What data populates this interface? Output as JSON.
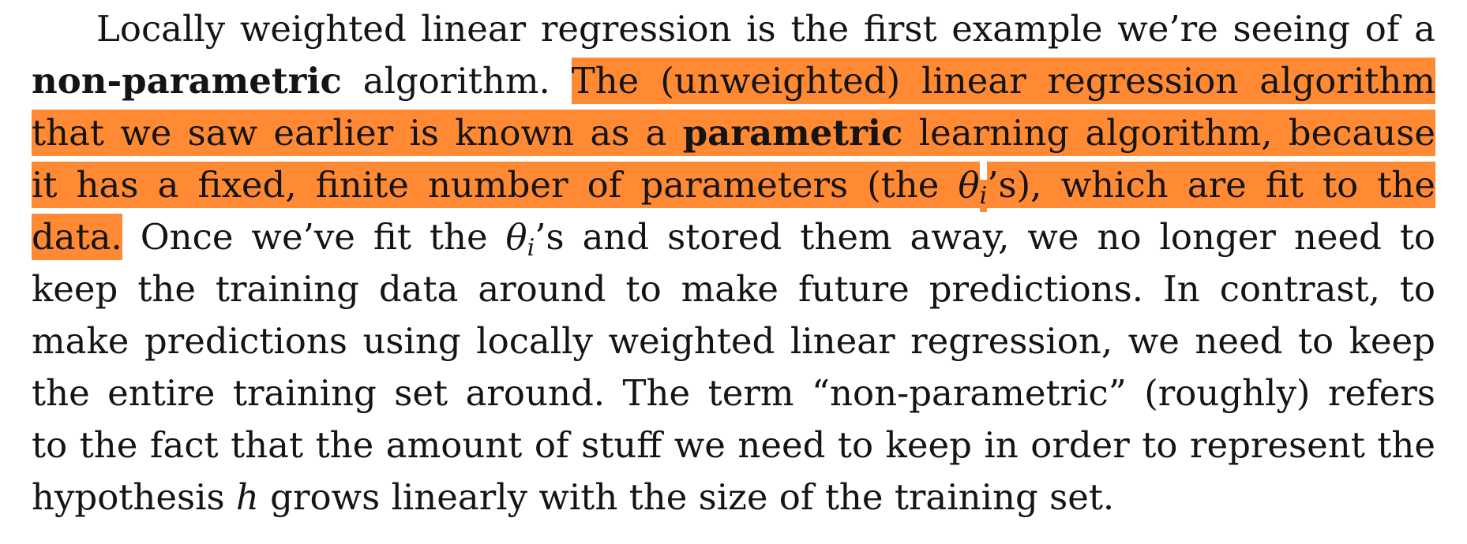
{
  "paragraph": {
    "lines": [
      {
        "segments": [
          {
            "text": "Locally weighted linear regression is the first example we’re seeing of a"
          }
        ]
      },
      {
        "segments": [
          {
            "text": "non-parametric",
            "bold": true
          },
          {
            "text": " algorithm. "
          },
          {
            "text": "The (unweighted) linear regression algorithm",
            "highlight": true
          }
        ]
      },
      {
        "segments": [
          {
            "text": "that we saw earlier is known as a ",
            "highlight": true
          },
          {
            "text": "parametric",
            "highlight": true,
            "bold": true
          },
          {
            "text": " learning algorithm, because",
            "highlight": true
          }
        ]
      },
      {
        "segments": [
          {
            "text": "it has a fixed, finite number of parameters (the ",
            "highlight": true
          },
          {
            "text": "θ",
            "highlight": true,
            "math": true
          },
          {
            "text": "i",
            "highlight": true,
            "sub": true
          },
          {
            "text": "’s), which are fit to the",
            "highlight": true
          }
        ]
      },
      {
        "segments": [
          {
            "text": "data.",
            "highlight": true
          },
          {
            "text": " Once we’ve fit the "
          },
          {
            "text": "θ",
            "math": true
          },
          {
            "text": "i",
            "sub": true
          },
          {
            "text": "’s and stored them away, we no longer need to"
          }
        ]
      },
      {
        "segments": [
          {
            "text": "keep the training data around to make future predictions. In contrast, to"
          }
        ]
      },
      {
        "segments": [
          {
            "text": "make predictions using locally weighted linear regression, we need to keep"
          }
        ]
      },
      {
        "segments": [
          {
            "text": "the entire training set around. The term “non-parametric” (roughly) refers"
          }
        ]
      },
      {
        "segments": [
          {
            "text": "to the fact that the amount of stuff we need to keep in order to represent the"
          }
        ]
      },
      {
        "segments": [
          {
            "text": "hypothesis "
          },
          {
            "text": "h",
            "math": true
          },
          {
            "text": " grows linearly with the size of the training set."
          }
        ]
      }
    ]
  },
  "colors": {
    "highlight": "#ff8a33",
    "text": "#141414",
    "background": "#ffffff"
  }
}
